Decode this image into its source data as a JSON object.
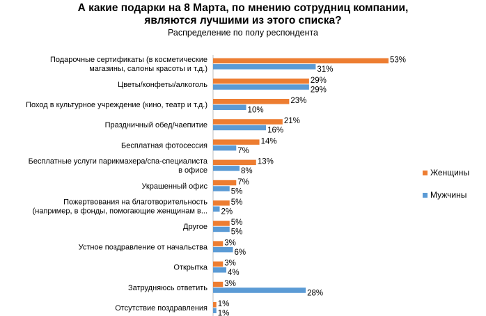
{
  "chart_data": {
    "type": "bar",
    "orientation": "horizontal",
    "title": "А какие подарки на 8 Марта, по мнению сотрудниц компании,\nявляются лучшими из этого списка?",
    "title_line1": "А какие подарки на 8 Марта, по мнению сотрудниц компании,",
    "title_line2": "являются лучшими из этого списка?",
    "subtitle": "Распределение по полу респондента",
    "categories": [
      [
        "Подарочные сертификаты (в косметические",
        "магазины, салоны красоты и т.д.)"
      ],
      [
        "Цветы/конфеты/алкоголь"
      ],
      [
        "Поход в культурное учреждение (кино, театр и т.д.)"
      ],
      [
        "Праздничный обед/чаепитие"
      ],
      [
        "Бесплатная фотосессия"
      ],
      [
        "Бесплатные услуги парикмахера/спа-специалиста",
        "в офисе"
      ],
      [
        "Украшенный офис"
      ],
      [
        "Пожертвования на благотворительность",
        "(например, в фонды, помогающие женщинам в..."
      ],
      [
        "Другое"
      ],
      [
        "Устное поздравление от начальства"
      ],
      [
        "Открытка"
      ],
      [
        "Затрудняюсь ответить"
      ],
      [
        "Отсутствие поздравления"
      ]
    ],
    "series": [
      {
        "name": "Женщины",
        "color": "#ED7D31",
        "values": [
          53,
          29,
          23,
          21,
          14,
          13,
          7,
          5,
          5,
          3,
          3,
          3,
          1
        ]
      },
      {
        "name": "Мужчины",
        "color": "#5B9BD5",
        "values": [
          31,
          29,
          10,
          16,
          7,
          8,
          5,
          2,
          5,
          6,
          4,
          28,
          1
        ]
      }
    ],
    "value_suffix": "%",
    "xlim": [
      0,
      53
    ],
    "grid": false,
    "legend_position": "right"
  }
}
